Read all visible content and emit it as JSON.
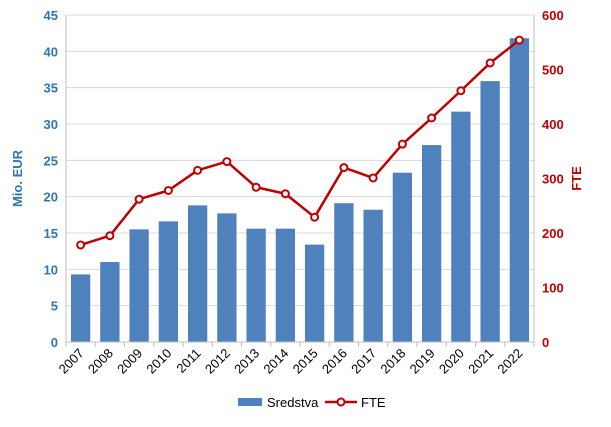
{
  "chart_data": {
    "type": "bar",
    "categories": [
      "2007",
      "2008",
      "2009",
      "2010",
      "2011",
      "2012",
      "2013",
      "2014",
      "2015",
      "2016",
      "2017",
      "2018",
      "2019",
      "2020",
      "2021",
      "2022"
    ],
    "series": [
      {
        "name": "Sredstva",
        "type": "bar",
        "axis": "left",
        "color": "#4f81bd",
        "values": [
          9.3,
          11.0,
          15.5,
          16.6,
          18.8,
          17.7,
          15.6,
          15.6,
          13.4,
          19.1,
          18.2,
          23.3,
          27.1,
          31.7,
          35.9,
          41.8
        ]
      },
      {
        "name": "FTE",
        "type": "line",
        "axis": "right",
        "color": "#c00000",
        "values": [
          178,
          195,
          262,
          278,
          315,
          331,
          284,
          272,
          229,
          320,
          301,
          363,
          411,
          461,
          512,
          554
        ]
      }
    ],
    "ylabel_left": "Mio. EUR",
    "ylim_left": [
      0,
      45
    ],
    "yticks_left": [
      "0",
      "5",
      "10",
      "15",
      "20",
      "25",
      "30",
      "35",
      "40",
      "45"
    ],
    "left_axis_color": "#2e75b6",
    "ylabel_right": "FTE",
    "ylim_right": [
      0,
      600
    ],
    "yticks_right": [
      "0",
      "100",
      "200",
      "300",
      "400",
      "500",
      "600"
    ],
    "right_axis_color": "#c00000",
    "grid": true,
    "legend_position": "bottom",
    "legend": [
      "Sredstva",
      "FTE"
    ]
  }
}
